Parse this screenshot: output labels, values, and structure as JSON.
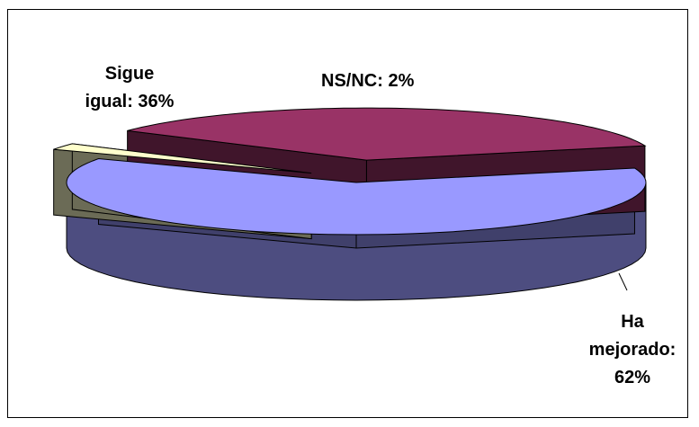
{
  "chart_data": {
    "type": "pie",
    "style": "3d-exploded",
    "title": "",
    "slices": [
      {
        "label": "Ha mejorado: 62%",
        "label_lines": [
          "Ha",
          "mejorado:",
          "62%"
        ],
        "value": 62,
        "color": "#9999ff"
      },
      {
        "label": "NS/NC: 2%",
        "label_lines": [
          "NS/NC: 2%"
        ],
        "value": 2,
        "color": "#ffffcc"
      },
      {
        "label": "Sigue igual: 36%",
        "label_lines": [
          "Sigue",
          "igual: 36%"
        ],
        "value": 36,
        "color": "#993366"
      }
    ],
    "legend": "none",
    "data_labels": "category-and-percent"
  }
}
